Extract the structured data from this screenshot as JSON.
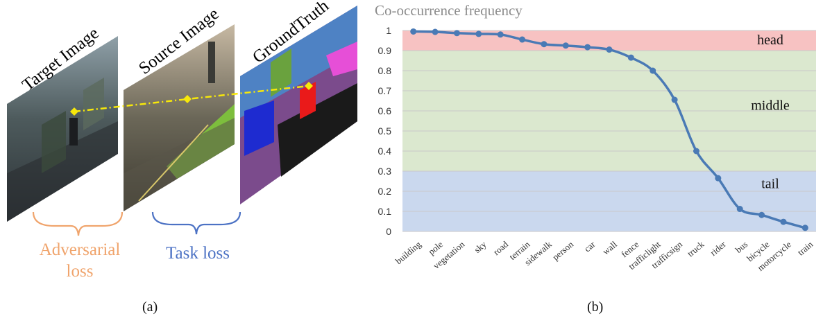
{
  "panel_a": {
    "caption": "(a)",
    "target_title": "Target Image",
    "source_title": "Source Image",
    "gt_title": "GroundTruth",
    "adversarial_label_line1": "Adversarial",
    "adversarial_label_line2": "loss",
    "task_label": "Task loss",
    "colors": {
      "adversarial": "#f0a46c",
      "task": "#4c72c4",
      "dash": "#f7e80a"
    }
  },
  "panel_b": {
    "caption": "(b)"
  },
  "chart_data": {
    "type": "line",
    "title": "Co-occurrence frequency",
    "xlabel": "",
    "ylabel": "",
    "ylim": [
      0,
      1
    ],
    "yticks": [
      "0",
      "0.1",
      "0.2",
      "0.3",
      "0.4",
      "0.5",
      "0.6",
      "0.7",
      "0.8",
      "0.9",
      "1"
    ],
    "categories": [
      "building",
      "pole",
      "vegetation",
      "sky",
      "road",
      "terrain",
      "sidewalk",
      "person",
      "car",
      "wall",
      "fence",
      "trafficlight",
      "trafficsign",
      "truck",
      "rider",
      "bus",
      "bicycle",
      "motorcycle",
      "train"
    ],
    "series": [
      {
        "name": "Co-occurrence frequency",
        "color": "#4a7ab5",
        "values": [
          0.995,
          0.993,
          0.987,
          0.983,
          0.98,
          0.955,
          0.932,
          0.925,
          0.917,
          0.905,
          0.865,
          0.8,
          0.655,
          0.4,
          0.265,
          0.112,
          0.082,
          0.048,
          0.018
        ]
      }
    ],
    "bands": [
      {
        "name": "head",
        "from": 0.9,
        "to": 1.0,
        "color": "#f7c2c2"
      },
      {
        "name": "middle",
        "from": 0.3,
        "to": 0.9,
        "color": "#dbe8cf"
      },
      {
        "name": "tail",
        "from": 0.0,
        "to": 0.3,
        "color": "#cad8ee"
      }
    ]
  }
}
